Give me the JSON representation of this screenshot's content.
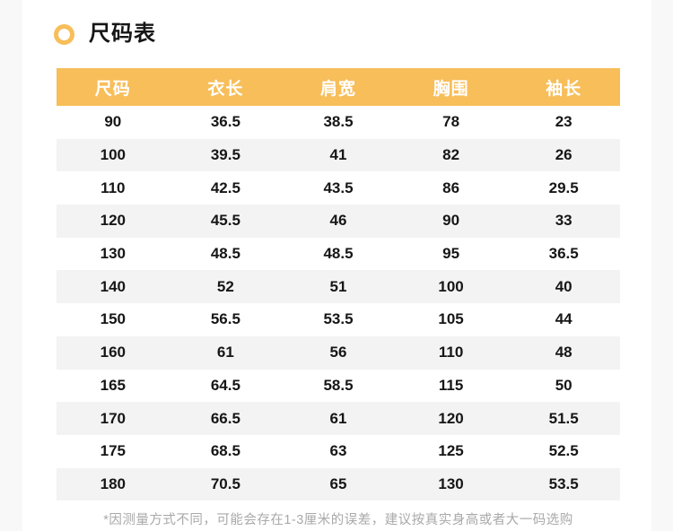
{
  "page": {
    "title": "尺码表",
    "footnote": "*因测量方式不同，可能会存在1-3厘米的误差，建议按真实身高或者大一码选购"
  },
  "colors": {
    "accent": "#F7BE5A",
    "row_alt": "#F3F3F3",
    "gutter": "#F8F8F8",
    "header_text": "#FFFFFF",
    "body_text": "#161616",
    "footnote_text": "#A9A9A9"
  },
  "icons": {
    "title_bullet": "ring-icon"
  },
  "table": {
    "columns": [
      "尺码",
      "衣长",
      "肩宽",
      "胸围",
      "袖长"
    ],
    "rows": [
      [
        "90",
        "36.5",
        "38.5",
        "78",
        "23"
      ],
      [
        "100",
        "39.5",
        "41",
        "82",
        "26"
      ],
      [
        "110",
        "42.5",
        "43.5",
        "86",
        "29.5"
      ],
      [
        "120",
        "45.5",
        "46",
        "90",
        "33"
      ],
      [
        "130",
        "48.5",
        "48.5",
        "95",
        "36.5"
      ],
      [
        "140",
        "52",
        "51",
        "100",
        "40"
      ],
      [
        "150",
        "56.5",
        "53.5",
        "105",
        "44"
      ],
      [
        "160",
        "61",
        "56",
        "110",
        "48"
      ],
      [
        "165",
        "64.5",
        "58.5",
        "115",
        "50"
      ],
      [
        "170",
        "66.5",
        "61",
        "120",
        "51.5"
      ],
      [
        "175",
        "68.5",
        "63",
        "125",
        "52.5"
      ],
      [
        "180",
        "70.5",
        "65",
        "130",
        "53.5"
      ]
    ]
  }
}
